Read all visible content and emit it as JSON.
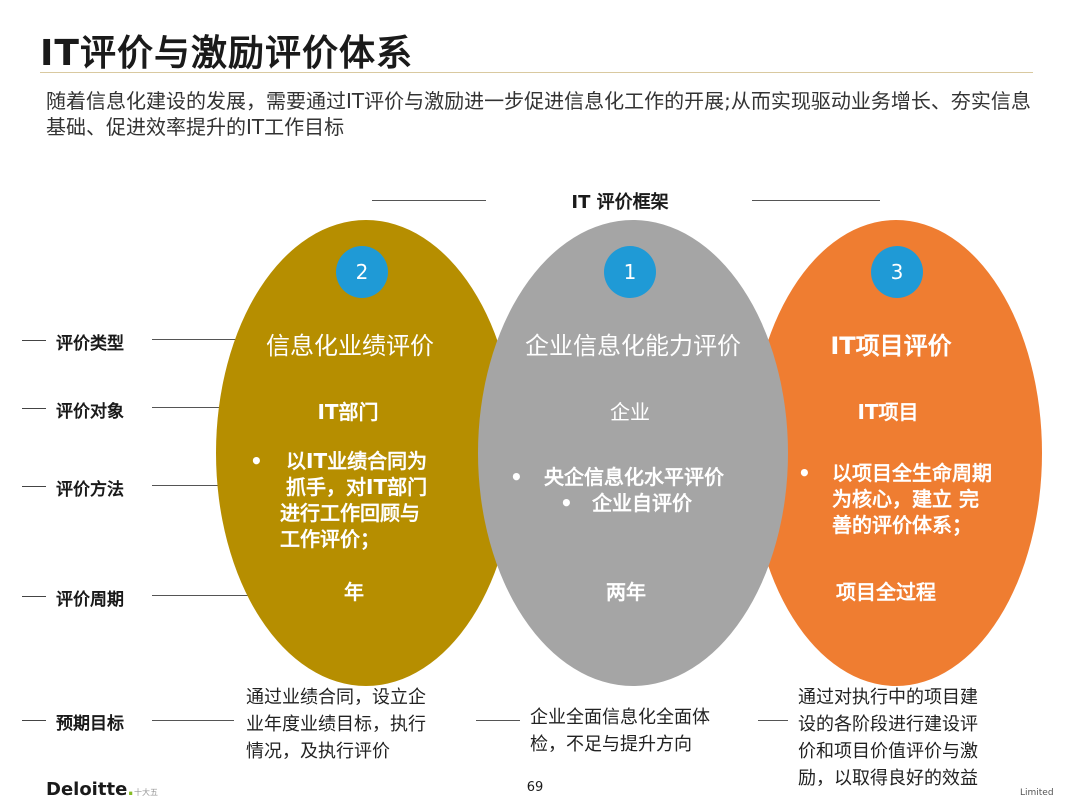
{
  "title": "IT评价与激励评价体系",
  "subtitle": "随着信息化建设的发展，需要通过IT评价与激励进一步促进信息化工作的开展;从而实现驱动业务增长、夯实信息基础、促进效率提升的IT工作目标",
  "framework_title": "IT 评价框架",
  "row_labels": {
    "type": "评价类型",
    "object": "评价对象",
    "method": "评价方法",
    "period": "评价周期",
    "goal": "预期目标"
  },
  "colors": {
    "left": "#b68e00",
    "middle": "#a5a5a5",
    "right": "#ef7d31",
    "badge": "#1f9ad6"
  },
  "ellipses": {
    "left": {
      "number": "2",
      "type": "信息化业绩评价",
      "object": "IT部门",
      "method_bullet": "•",
      "method_lines": [
        "以IT业绩合同为",
        "抓手，对IT部门",
        "进行工作回顾与",
        "工作评价；"
      ],
      "period": "年",
      "goal_lines": [
        "通过业绩合同，设立企",
        "业年度业绩目标，执行",
        "情况，及执行评价"
      ]
    },
    "middle": {
      "number": "1",
      "type": "企业信息化能力评价",
      "object": "企业",
      "method_bullet": "•",
      "method_lines": [
        "央企信息化水平评价",
        "企业自评价"
      ],
      "period": "两年",
      "goal_lines": [
        "企业全面信息化全面体",
        "检，不足与提升方向"
      ]
    },
    "right": {
      "number": "3",
      "type": "IT项目评价",
      "object": "IT项目",
      "method_bullet": "•",
      "method_lines": [
        "以项目全生命周期",
        "为核心，建立 完",
        "善的评价体系；"
      ],
      "period": "项目全过程",
      "goal_lines": [
        "通过对执行中的项目建",
        "设的各阶段进行建设评",
        "价和项目价值评价与激",
        "励，以取得良好的效益"
      ]
    }
  },
  "footer": {
    "logo": "Deloitte",
    "logo_dot": ".",
    "note": "十大五",
    "page": "69",
    "right": "Limited"
  }
}
